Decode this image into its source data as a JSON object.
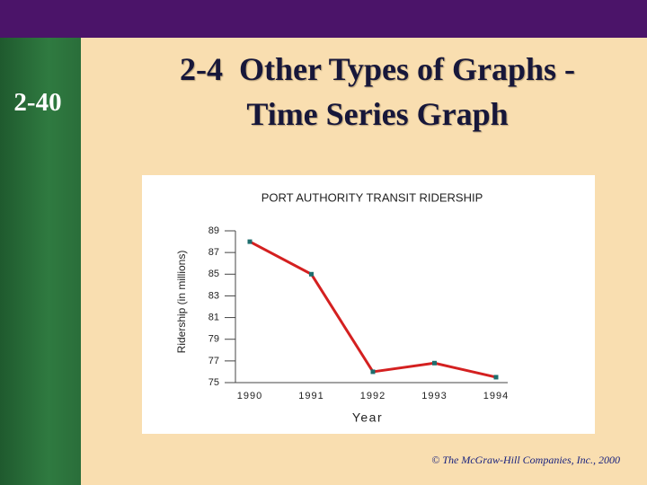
{
  "slide_number": "2-40",
  "title": [
    "2-4  Other Types of Graphs -",
    "Time Series Graph"
  ],
  "footer": "© The McGraw-Hill Companies, Inc., 2000",
  "chart_data": {
    "type": "line",
    "title": "PORT AUTHORITY TRANSIT RIDERSHIP",
    "y_label": "Ridership (in millions)",
    "x_label": "Year",
    "categories": [
      "1990",
      "1991",
      "1992",
      "1993",
      "1994"
    ],
    "values": [
      88.0,
      85.0,
      76.0,
      76.8,
      75.5
    ],
    "color": "#d42020",
    "marker_color": "#1e6e6e",
    "ylim": [
      75,
      89
    ],
    "yticks": [
      75,
      77,
      79,
      81,
      83,
      85,
      87,
      89
    ]
  }
}
